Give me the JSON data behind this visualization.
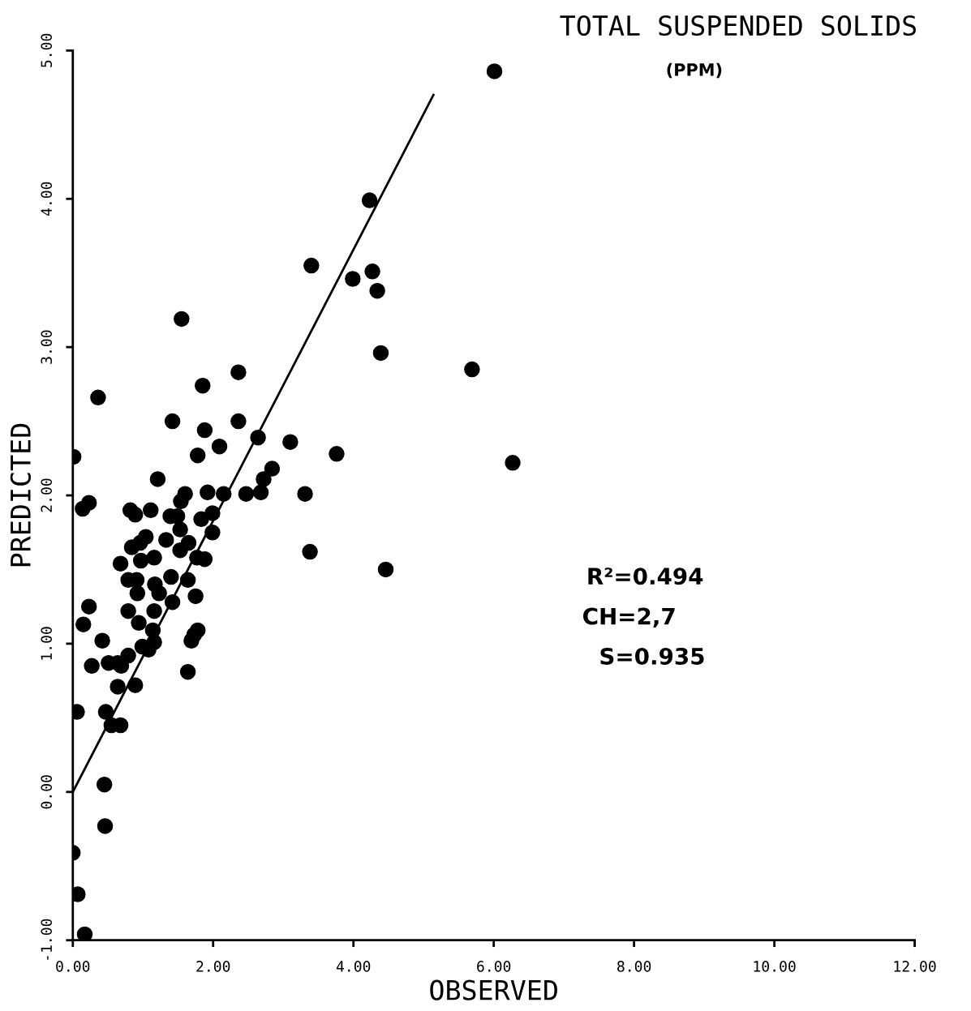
{
  "chart_data": {
    "type": "scatter",
    "title": "TOTAL SUSPENDED SOLIDS",
    "subtitle": "(PPM)",
    "xlabel": "OBSERVED",
    "ylabel": "PREDICTED",
    "annotations": [
      "R²=0.494",
      "CH=2,7",
      "S=0.935"
    ],
    "xlim": [
      0,
      12
    ],
    "ylim": [
      -1,
      5
    ],
    "xticks": [
      {
        "value": 0,
        "label": "0.00"
      },
      {
        "value": 2,
        "label": "2.00"
      },
      {
        "value": 4,
        "label": "4.00"
      },
      {
        "value": 6,
        "label": "6.00"
      },
      {
        "value": 8,
        "label": "8.00"
      },
      {
        "value": 10,
        "label": "10.00"
      },
      {
        "value": 12,
        "label": "12.00"
      }
    ],
    "yticks": [
      {
        "value": -1,
        "label": "-1.00"
      },
      {
        "value": 0,
        "label": "0.00"
      },
      {
        "value": 1,
        "label": "1.00"
      },
      {
        "value": 2,
        "label": "2.00"
      },
      {
        "value": 3,
        "label": "3.00"
      },
      {
        "value": 4,
        "label": "4.00"
      },
      {
        "value": 5,
        "label": "5.00"
      }
    ],
    "grid": false,
    "legend": false,
    "marker": "circle",
    "series": [
      {
        "color": "#000000",
        "x": [
          6.01,
          4.23,
          3.4,
          3.99,
          4.27,
          4.34,
          4.39,
          1.55,
          5.69,
          2.36,
          0.36,
          1.85,
          6.27,
          1.42,
          2.36,
          1.88,
          2.64,
          2.09,
          3.1,
          3.76,
          1.78,
          0.01,
          2.84,
          2.72,
          1.21,
          3.31,
          2.47,
          2.68,
          2.15,
          1.92,
          1.6,
          1.54,
          0.23,
          0.14,
          0.82,
          0.89,
          1.11,
          1.39,
          1.49,
          1.99,
          1.83,
          1.53,
          1.99,
          1.04,
          1.33,
          0.96,
          0.84,
          1.65,
          1.53,
          1.16,
          0.97,
          0.68,
          1.77,
          1.88,
          3.38,
          4.46,
          1.4,
          0.79,
          0.91,
          1.64,
          1.17,
          1.23,
          0.92,
          1.75,
          1.42,
          1.16,
          0.79,
          0.23,
          0.15,
          0.94,
          1.78,
          1.14,
          1.73,
          1.69,
          1.16,
          0.42,
          0.99,
          1.08,
          0.79,
          0.51,
          0.64,
          0.27,
          0.69,
          1.64,
          0.64,
          0.89,
          0.06,
          0.47,
          0.55,
          0.68,
          0.45,
          0.46,
          0.0,
          0.07,
          0.17
        ],
        "values": [
          4.86,
          3.99,
          3.55,
          3.46,
          3.51,
          3.38,
          2.96,
          3.19,
          2.85,
          2.83,
          2.66,
          2.74,
          2.22,
          2.5,
          2.5,
          2.44,
          2.39,
          2.33,
          2.36,
          2.28,
          2.27,
          2.26,
          2.18,
          2.11,
          2.11,
          2.01,
          2.01,
          2.02,
          2.01,
          2.02,
          2.01,
          1.96,
          1.95,
          1.91,
          1.9,
          1.87,
          1.9,
          1.86,
          1.86,
          1.88,
          1.84,
          1.77,
          1.75,
          1.72,
          1.7,
          1.68,
          1.65,
          1.68,
          1.63,
          1.58,
          1.56,
          1.54,
          1.58,
          1.57,
          1.62,
          1.5,
          1.45,
          1.43,
          1.43,
          1.43,
          1.4,
          1.34,
          1.34,
          1.32,
          1.28,
          1.22,
          1.22,
          1.25,
          1.13,
          1.14,
          1.09,
          1.09,
          1.06,
          1.02,
          1.01,
          1.02,
          0.98,
          0.96,
          0.92,
          0.87,
          0.87,
          0.85,
          0.85,
          0.81,
          0.71,
          0.72,
          0.54,
          0.54,
          0.45,
          0.45,
          0.05,
          -0.23,
          -0.41,
          -0.69,
          -0.96
        ]
      },
      {
        "type": "line",
        "color": "#000000",
        "marker": "none",
        "line_style": "solid",
        "x": [
          0,
          5.14
        ],
        "values": [
          0,
          4.7
        ]
      }
    ]
  }
}
